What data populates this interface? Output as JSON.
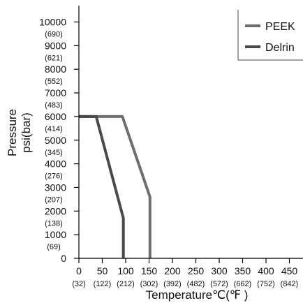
{
  "chart_data": {
    "type": "line",
    "xlabel": "Temperature℃(℉ )",
    "ylabel_line1": "Pressure",
    "ylabel_line2": "psi(bar)",
    "xlim": [
      0,
      475
    ],
    "ylim": [
      0,
      11000
    ],
    "x_ticks": [
      {
        "value": 0,
        "label": "0",
        "sub": "(32)"
      },
      {
        "value": 50,
        "label": "50",
        "sub": "(122)"
      },
      {
        "value": 100,
        "label": "100",
        "sub": "(212)"
      },
      {
        "value": 150,
        "label": "150",
        "sub": "(302)"
      },
      {
        "value": 200,
        "label": "200",
        "sub": "(392)"
      },
      {
        "value": 250,
        "label": "250",
        "sub": "(482)"
      },
      {
        "value": 300,
        "label": "300",
        "sub": "(572)"
      },
      {
        "value": 350,
        "label": "350",
        "sub": "(662)"
      },
      {
        "value": 400,
        "label": "400",
        "sub": "(752)"
      },
      {
        "value": 450,
        "label": "450",
        "sub": "(842)"
      }
    ],
    "y_ticks": [
      {
        "value": 0,
        "label": "0",
        "sub": ""
      },
      {
        "value": 1000,
        "label": "1000",
        "sub": "(69)"
      },
      {
        "value": 2000,
        "label": "2000",
        "sub": "(138)"
      },
      {
        "value": 3000,
        "label": "3000",
        "sub": "(207)"
      },
      {
        "value": 4000,
        "label": "4000",
        "sub": "(276)"
      },
      {
        "value": 5000,
        "label": "5000",
        "sub": "(345)"
      },
      {
        "value": 6000,
        "label": "6000",
        "sub": "(414)"
      },
      {
        "value": 7000,
        "label": "7000",
        "sub": "(483)"
      },
      {
        "value": 8000,
        "label": "8000",
        "sub": "(552)"
      },
      {
        "value": 9000,
        "label": "9000",
        "sub": "(621)"
      },
      {
        "value": 10000,
        "label": "10000",
        "sub": "(690)"
      }
    ],
    "series": [
      {
        "name": "PEEK",
        "color": "#6e6e6e",
        "points": [
          [
            0,
            6000
          ],
          [
            93,
            6000
          ],
          [
            152,
            2600
          ],
          [
            152,
            0
          ]
        ]
      },
      {
        "name": "Delrin",
        "color": "#4a4a4a",
        "points": [
          [
            0,
            6000
          ],
          [
            37,
            6000
          ],
          [
            95,
            1700
          ],
          [
            95,
            0
          ]
        ]
      }
    ],
    "legend_position": "top-right",
    "grid": false
  }
}
